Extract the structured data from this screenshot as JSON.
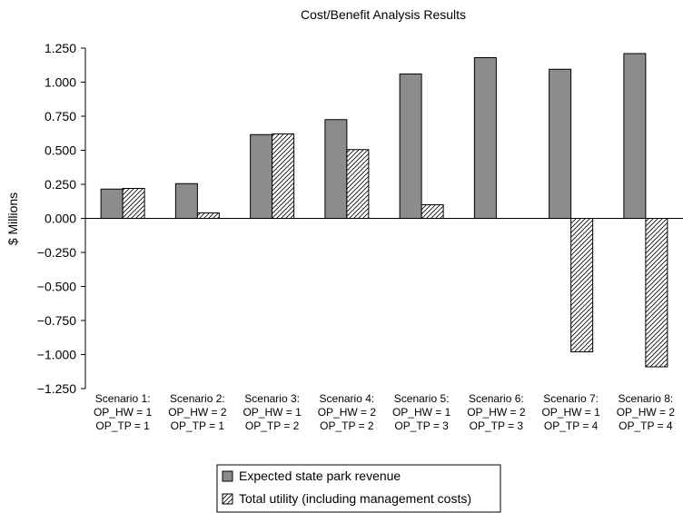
{
  "chart_data": {
    "type": "bar",
    "title": "Cost/Benefit Analysis Results",
    "xlabel": "",
    "ylabel": "$ Millions",
    "ylim": [
      -1.25,
      1.25
    ],
    "yticks": [
      "1.250",
      "1.000",
      "0.750",
      "0.500",
      "0.250",
      "0.000",
      "−0.250",
      "−0.500",
      "−0.750",
      "−1.000",
      "−1.250"
    ],
    "ytick_values": [
      1.25,
      1.0,
      0.75,
      0.5,
      0.25,
      0.0,
      -0.25,
      -0.5,
      -0.75,
      -1.0,
      -1.25
    ],
    "categories": [
      [
        "Scenario 1:",
        "OP_HW = 1",
        "OP_TP = 1"
      ],
      [
        "Scenario 2:",
        "OP_HW = 2",
        "OP_TP = 1"
      ],
      [
        "Scenario 3:",
        "OP_HW = 1",
        "OP_TP = 2"
      ],
      [
        "Scenario 4:",
        "OP_HW = 2",
        "OP_TP = 2"
      ],
      [
        "Scenario 5:",
        "OP_HW = 1",
        "OP_TP = 3"
      ],
      [
        "Scenario 6:",
        "OP_HW = 2",
        "OP_TP = 3"
      ],
      [
        "Scenario 7:",
        "OP_HW = 1",
        "OP_TP = 4"
      ],
      [
        "Scenario 8:",
        "OP_HW = 2",
        "OP_TP = 4"
      ]
    ],
    "series": [
      {
        "name": "Expected state park revenue",
        "style": "solid-gray",
        "color": "#8c8c8c",
        "values": [
          0.215,
          0.255,
          0.615,
          0.725,
          1.06,
          1.18,
          1.095,
          1.21
        ]
      },
      {
        "name": "Total utility (including management costs)",
        "style": "hatched",
        "color": "#ffffff",
        "values": [
          0.22,
          0.04,
          0.62,
          0.505,
          0.1,
          0.0,
          -0.98,
          -1.09
        ]
      }
    ],
    "grid": false,
    "legend_position": "bottom-center"
  }
}
